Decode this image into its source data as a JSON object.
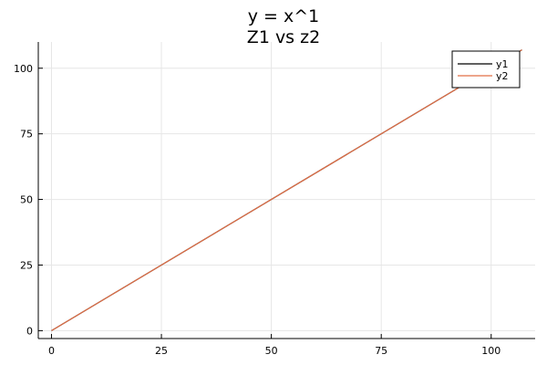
{
  "chart_data": {
    "type": "line",
    "title": "y = x^1",
    "subtitle": "Z1 vs z2",
    "xlim": [
      -3,
      110
    ],
    "ylim": [
      -3,
      110
    ],
    "xticks": [
      0,
      25,
      50,
      75,
      100
    ],
    "yticks": [
      0,
      25,
      50,
      75,
      100
    ],
    "xtick_labels": [
      "0",
      "25",
      "50",
      "75",
      "100"
    ],
    "ytick_labels": [
      "0",
      "25",
      "50",
      "75",
      "100"
    ],
    "grid": true,
    "legend_position": "top-right",
    "series": [
      {
        "name": "y1",
        "color": "#000000",
        "x": [
          0,
          107
        ],
        "y": [
          0,
          107
        ]
      },
      {
        "name": "y2",
        "color": "#e26f46",
        "x": [
          0,
          107
        ],
        "y": [
          0,
          107
        ]
      }
    ]
  }
}
